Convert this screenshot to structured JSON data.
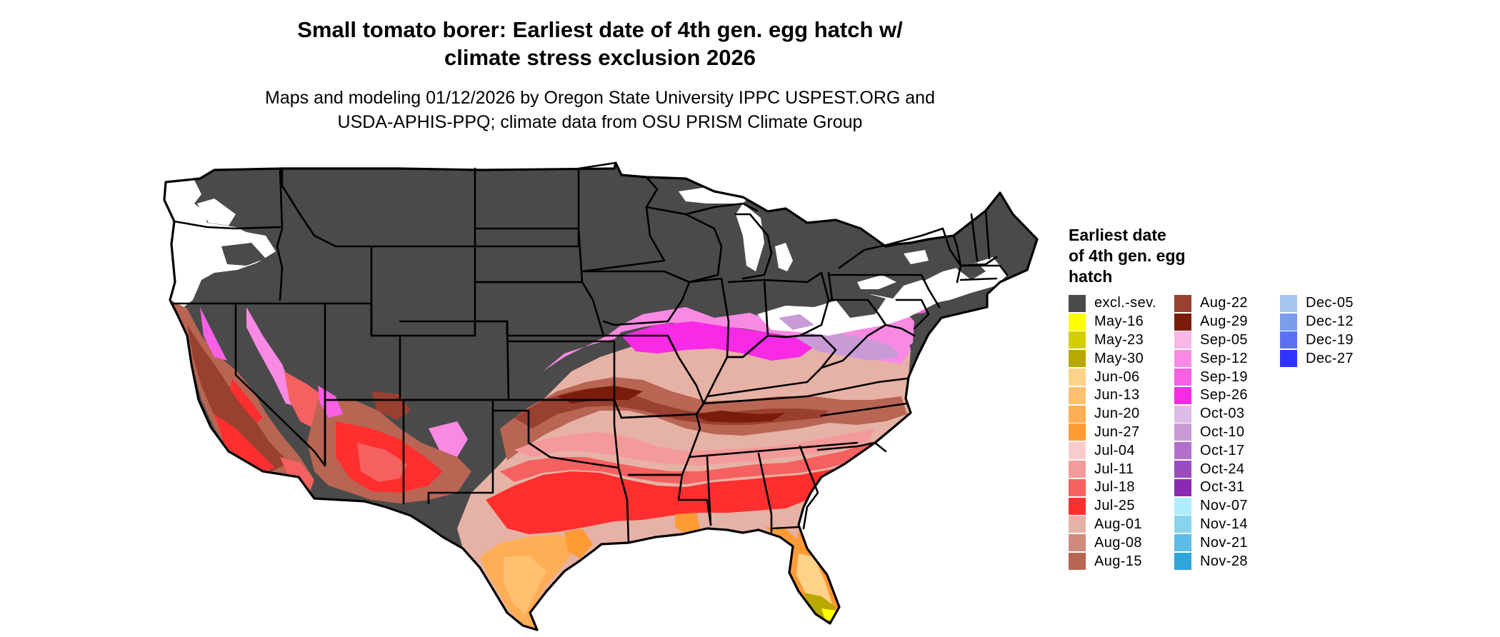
{
  "header": {
    "title_line1": "Small tomato borer: Earliest date of 4th gen. egg hatch w/",
    "title_line2": "climate stress exclusion 2026",
    "subtitle_line1": "Maps and modeling 01/12/2026 by Oregon State University IPPC USPEST.ORG and",
    "subtitle_line2": "USDA-APHIS-PPQ; climate data from OSU PRISM Climate Group"
  },
  "legend": {
    "title_line1": "Earliest date",
    "title_line2": "of 4th gen. egg",
    "title_line3": "hatch",
    "items": [
      {
        "label": "excl.-sev.",
        "color": "#4a4a4a"
      },
      {
        "label": "May-16",
        "color": "#ffff00"
      },
      {
        "label": "May-23",
        "color": "#d6cf00"
      },
      {
        "label": "May-30",
        "color": "#b8a800"
      },
      {
        "label": "Jun-06",
        "color": "#ffd28a"
      },
      {
        "label": "Jun-13",
        "color": "#ffc070"
      },
      {
        "label": "Jun-20",
        "color": "#ffae55"
      },
      {
        "label": "Jun-27",
        "color": "#ff9a35"
      },
      {
        "label": "Jul-04",
        "color": "#f9cccc"
      },
      {
        "label": "Jul-11",
        "color": "#f59a9a"
      },
      {
        "label": "Jul-18",
        "color": "#f56060"
      },
      {
        "label": "Jul-25",
        "color": "#ff2f2f"
      },
      {
        "label": "Aug-01",
        "color": "#e6b2a6"
      },
      {
        "label": "Aug-08",
        "color": "#cf8c7d"
      },
      {
        "label": "Aug-15",
        "color": "#b86554"
      },
      {
        "label": "Aug-22",
        "color": "#9a4030"
      },
      {
        "label": "Aug-29",
        "color": "#7a1c0c"
      },
      {
        "label": "Sep-05",
        "color": "#f9b6e6"
      },
      {
        "label": "Sep-12",
        "color": "#f98ae4"
      },
      {
        "label": "Sep-19",
        "color": "#f960e6"
      },
      {
        "label": "Sep-26",
        "color": "#f92ae6"
      },
      {
        "label": "Oct-03",
        "color": "#dcbce6"
      },
      {
        "label": "Oct-10",
        "color": "#c89ad6"
      },
      {
        "label": "Oct-17",
        "color": "#b270cc"
      },
      {
        "label": "Oct-24",
        "color": "#9c4cbe"
      },
      {
        "label": "Oct-31",
        "color": "#8a2ab0"
      },
      {
        "label": "Nov-07",
        "color": "#b0ecff"
      },
      {
        "label": "Nov-14",
        "color": "#88d4f0"
      },
      {
        "label": "Nov-21",
        "color": "#5cbce6"
      },
      {
        "label": "Nov-28",
        "color": "#2ea6da"
      },
      {
        "label": "Dec-05",
        "color": "#a6c6ee"
      },
      {
        "label": "Dec-12",
        "color": "#7c9cee"
      },
      {
        "label": "Dec-19",
        "color": "#5a72f2"
      },
      {
        "label": "Dec-27",
        "color": "#2e34fc"
      }
    ]
  }
}
